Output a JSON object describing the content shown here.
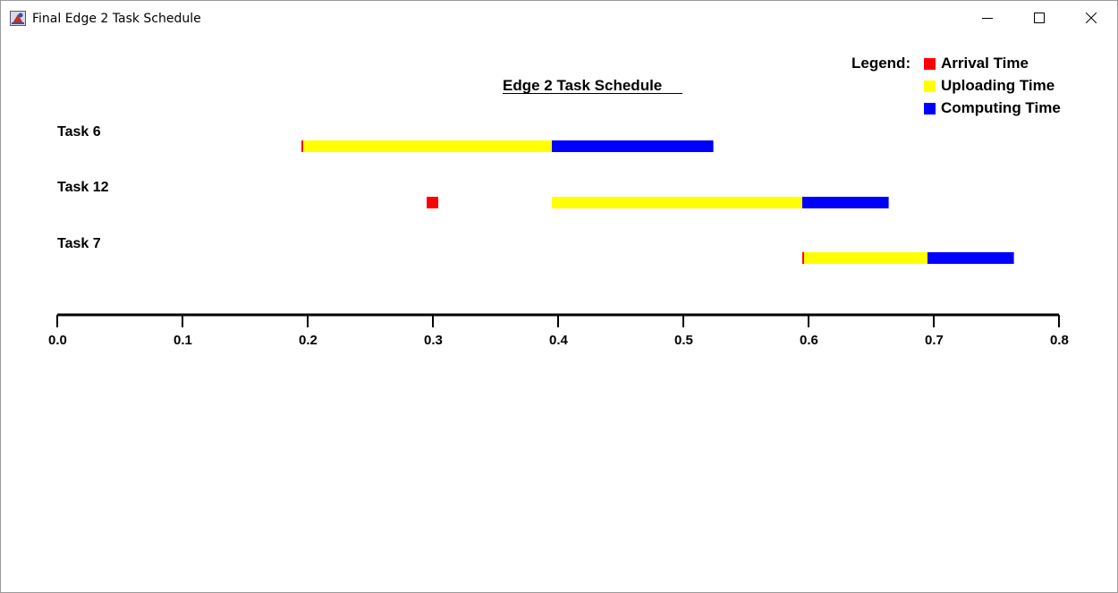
{
  "window": {
    "title": "Final Edge 2 Task Schedule",
    "icon": "java-app-icon",
    "controls": [
      "minimize-icon",
      "maximize-icon",
      "close-icon"
    ]
  },
  "chart_data": {
    "type": "gantt",
    "title": "Edge 2 Task Schedule ",
    "legend_title": "Legend:",
    "legend_position": "top-right",
    "legend": [
      {
        "label": "Arrival Time",
        "color": "#ff0000"
      },
      {
        "label": "Uploading Time",
        "color": "#ffff00"
      },
      {
        "label": "Computing Time",
        "color": "#0000ff"
      }
    ],
    "x_ticks": [
      "0.0",
      "0.1",
      "0.2",
      "0.3",
      "0.4",
      "0.5",
      "0.6",
      "0.7",
      "0.8"
    ],
    "xlim": [
      0.0,
      0.8
    ],
    "grid": false,
    "tasks": [
      {
        "name": "Task 6",
        "arrival": 0.195,
        "upload": [
          0.195,
          0.395
        ],
        "compute": [
          0.395,
          0.524
        ]
      },
      {
        "name": "Task 12",
        "arrival": 0.3,
        "upload": [
          0.395,
          0.595
        ],
        "compute": [
          0.595,
          0.664
        ]
      },
      {
        "name": "Task 7",
        "arrival": 0.595,
        "upload": [
          0.595,
          0.695
        ],
        "compute": [
          0.695,
          0.764
        ]
      }
    ]
  }
}
